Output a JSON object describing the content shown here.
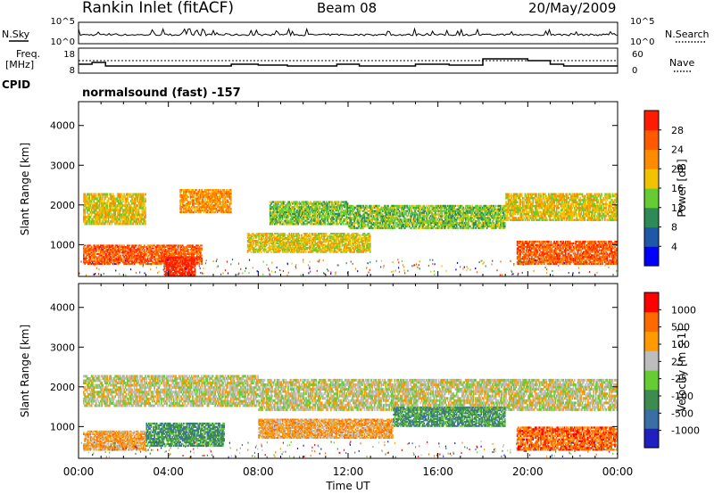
{
  "header": {
    "station": "Rankin Inlet (fitACF)",
    "beam": "Beam 08",
    "date": "20/May/2009"
  },
  "strip_labels": {
    "nsky": "N.Sky",
    "nsearch": "N.Search",
    "freq": "Freq.",
    "freq_unit": "[MHz]",
    "nave": "Nave",
    "cpid": "CPID",
    "cpid_value": "normalsound (fast) -157",
    "noise_top": "10^5",
    "noise_bottom": "10^0",
    "freq_ticks": [
      "18",
      "8"
    ],
    "nave_ticks": [
      "60",
      "0"
    ]
  },
  "x_axis": {
    "label": "Time UT",
    "ticks": [
      "00:00",
      "04:00",
      "08:00",
      "12:00",
      "16:00",
      "20:00",
      "00:00"
    ]
  },
  "chart_data": [
    {
      "type": "heatmap",
      "title": "",
      "ylabel": "Slant Range [km]",
      "xlabel": "Time UT",
      "ylim": [
        200,
        4600
      ],
      "yticks": [
        "4000",
        "3000",
        "2000",
        "1000"
      ],
      "xlim": [
        "00:00",
        "24:00"
      ],
      "colorbar": {
        "label": "Power [dB]",
        "ticks": [
          "28",
          "24",
          "20",
          "16",
          "12",
          "8",
          "4"
        ],
        "colors": [
          "#0000ff",
          "#1f58a8",
          "#2e8b57",
          "#66cc33",
          "#f2c200",
          "#ff8c00",
          "#ff5a00",
          "#ff1a00"
        ]
      },
      "bands": [
        {
          "t0": 0.2,
          "t1": 5.5,
          "r_lo": 500,
          "r_hi": 1000,
          "level": 6
        },
        {
          "t0": 3.8,
          "t1": 5.2,
          "r_lo": 200,
          "r_hi": 700,
          "level": 7
        },
        {
          "t0": 0.2,
          "t1": 3.0,
          "r_lo": 1500,
          "r_hi": 2300,
          "level": 4
        },
        {
          "t0": 4.5,
          "t1": 6.8,
          "r_lo": 1800,
          "r_hi": 2400,
          "level": 5
        },
        {
          "t0": 7.5,
          "t1": 13.0,
          "r_lo": 800,
          "r_hi": 1300,
          "level": 4
        },
        {
          "t0": 8.5,
          "t1": 12.0,
          "r_lo": 1500,
          "r_hi": 2100,
          "level": 3
        },
        {
          "t0": 12.0,
          "t1": 19.0,
          "r_lo": 1400,
          "r_hi": 2000,
          "level": 3
        },
        {
          "t0": 19.0,
          "t1": 24.0,
          "r_lo": 1600,
          "r_hi": 2300,
          "level": 4
        },
        {
          "t0": 19.5,
          "t1": 24.0,
          "r_lo": 500,
          "r_hi": 1100,
          "level": 6
        }
      ]
    },
    {
      "type": "heatmap",
      "title": "",
      "ylabel": "Slant Range [km]",
      "xlabel": "Time UT",
      "ylim": [
        200,
        4600
      ],
      "yticks": [
        "4000",
        "3000",
        "2000",
        "1000"
      ],
      "xlim": [
        "00:00",
        "24:00"
      ],
      "colorbar": {
        "label": "Velocity [m s-1]",
        "ticks": [
          "1000",
          "500",
          "100",
          "25",
          "-25",
          "-100",
          "-500",
          "-1000"
        ],
        "colors": [
          "#2020c0",
          "#3a6ea5",
          "#3d8b4f",
          "#66cc33",
          "#bdbdbd",
          "#ff9a00",
          "#ff6a00",
          "#ff0000"
        ]
      },
      "bands": [
        {
          "t0": 0.2,
          "t1": 8.0,
          "r_lo": 1500,
          "r_hi": 2300,
          "level": 4
        },
        {
          "t0": 8.0,
          "t1": 24.0,
          "r_lo": 1400,
          "r_hi": 2200,
          "level": 4
        },
        {
          "t0": 0.2,
          "t1": 3.0,
          "r_lo": 400,
          "r_hi": 900,
          "level": 5
        },
        {
          "t0": 3.0,
          "t1": 6.5,
          "r_lo": 500,
          "r_hi": 1100,
          "level": 2
        },
        {
          "t0": 8.0,
          "t1": 14.0,
          "r_lo": 700,
          "r_hi": 1200,
          "level": 5
        },
        {
          "t0": 14.0,
          "t1": 19.0,
          "r_lo": 1000,
          "r_hi": 1500,
          "level": 2
        },
        {
          "t0": 19.5,
          "t1": 24.0,
          "r_lo": 400,
          "r_hi": 1000,
          "level": 6
        }
      ]
    }
  ]
}
